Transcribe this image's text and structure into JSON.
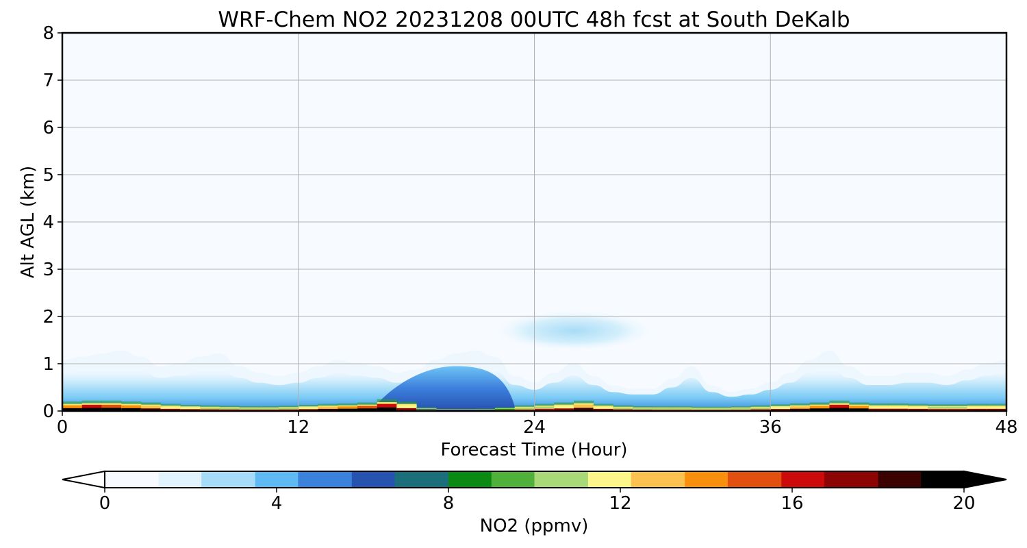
{
  "chart_data": {
    "type": "heatmap",
    "title": "WRF-Chem NO2  20231208 00UTC 48h fcst at South DeKalb",
    "xlabel": "Forecast Time (Hour)",
    "ylabel": "Alt AGL (km)",
    "xlim": [
      0,
      48
    ],
    "ylim": [
      0,
      8
    ],
    "xticks": [
      0,
      12,
      24,
      36,
      48
    ],
    "xtick_labels": [
      "0",
      "12",
      "24",
      "36",
      "48"
    ],
    "yticks": [
      0,
      1,
      2,
      3,
      4,
      5,
      6,
      7,
      8
    ],
    "ytick_labels": [
      "0",
      "1",
      "2",
      "3",
      "4",
      "5",
      "6",
      "7",
      "8"
    ],
    "grid": true,
    "colorbar": {
      "label": "NO2  (ppmv)",
      "orientation": "horizontal",
      "placement": "bottom",
      "extend": "both",
      "vmin": 0,
      "vmax": 20,
      "ticks": [
        0,
        4,
        8,
        12,
        16,
        20
      ],
      "tick_labels": [
        "0",
        "4",
        "8",
        "12",
        "16",
        "20"
      ],
      "colors": [
        "#f7fbff",
        "#e1f3fd",
        "#a6dcf7",
        "#5fbaf3",
        "#3b82dc",
        "#2753b0",
        "#1a6f7a",
        "#0a8a12",
        "#4fb03a",
        "#a8d878",
        "#fbf58a",
        "#fcc24f",
        "#f8900e",
        "#e2500f",
        "#cc0a0a",
        "#8c0404",
        "#3c0202",
        "#000000"
      ]
    },
    "x_hours": [
      0,
      1,
      2,
      3,
      4,
      5,
      6,
      7,
      8,
      9,
      10,
      11,
      12,
      13,
      14,
      15,
      16,
      17,
      18,
      19,
      20,
      21,
      22,
      23,
      24,
      25,
      26,
      27,
      28,
      29,
      30,
      31,
      32,
      33,
      34,
      35,
      36,
      37,
      38,
      39,
      40,
      41,
      42,
      43,
      44,
      45,
      46,
      47,
      48
    ],
    "surface_no2_ppmv": [
      14,
      16,
      15,
      14,
      13,
      12,
      12,
      11,
      11,
      11,
      11,
      11,
      12,
      13,
      14,
      15,
      16,
      12,
      7,
      6,
      6,
      7,
      8,
      10,
      11,
      12,
      13,
      12,
      11,
      11,
      10,
      10,
      10,
      10,
      10,
      11,
      12,
      13,
      14,
      16,
      14,
      12,
      12,
      12,
      11,
      11,
      12,
      12,
      12
    ],
    "surface_layer_top_km": [
      0.2,
      0.22,
      0.22,
      0.2,
      0.18,
      0.15,
      0.13,
      0.12,
      0.11,
      0.1,
      0.1,
      0.11,
      0.13,
      0.15,
      0.16,
      0.18,
      0.25,
      0.2,
      0.08,
      0.05,
      0.05,
      0.05,
      0.08,
      0.12,
      0.15,
      0.18,
      0.22,
      0.15,
      0.12,
      0.1,
      0.1,
      0.1,
      0.09,
      0.09,
      0.1,
      0.12,
      0.14,
      0.16,
      0.18,
      0.22,
      0.18,
      0.16,
      0.16,
      0.15,
      0.14,
      0.14,
      0.15,
      0.15,
      0.15
    ],
    "plume_top_km": [
      0.8,
      0.85,
      0.9,
      0.95,
      0.85,
      0.7,
      0.75,
      0.85,
      0.9,
      0.7,
      0.6,
      0.55,
      0.6,
      0.7,
      0.8,
      0.75,
      0.7,
      0.6,
      0.65,
      0.8,
      0.9,
      0.95,
      0.85,
      0.55,
      0.45,
      0.6,
      0.75,
      0.55,
      0.4,
      0.35,
      0.35,
      0.5,
      0.7,
      0.4,
      0.3,
      0.35,
      0.45,
      0.6,
      0.8,
      0.95,
      0.7,
      0.55,
      0.55,
      0.6,
      0.6,
      0.55,
      0.65,
      0.75,
      0.8
    ],
    "elevated_blob": {
      "x_range": [
        23,
        31
      ],
      "center": [
        26,
        1.7
      ],
      "top_km": 2.15,
      "bottom_km": 1.3,
      "peak_ppmv": 1.5
    },
    "midday_mixed_layer": {
      "x_range": [
        16,
        23
      ],
      "top_km": 0.95,
      "peak_ppmv": 5
    }
  }
}
